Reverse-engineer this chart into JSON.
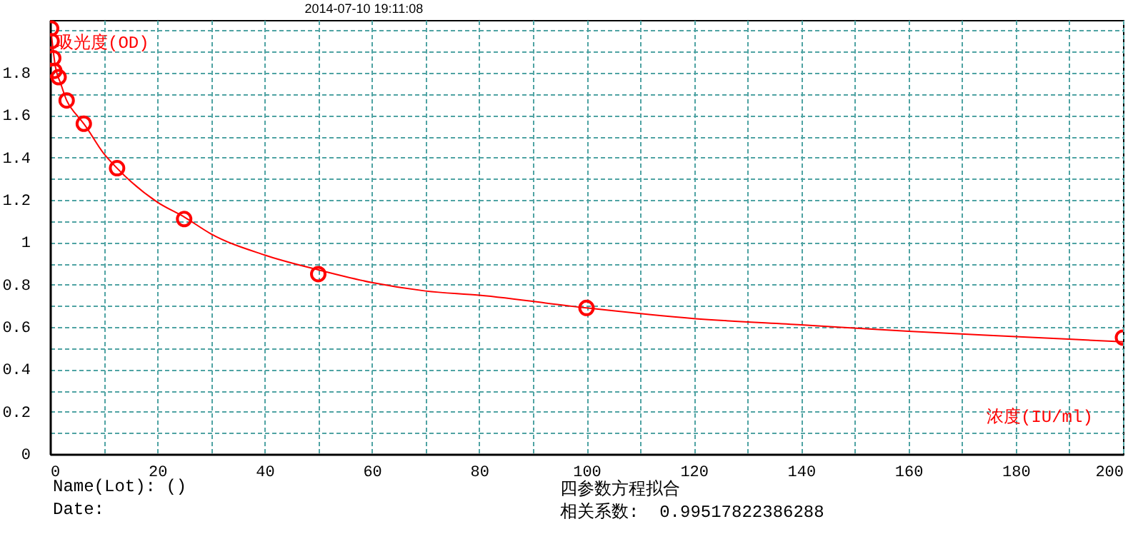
{
  "chart_data": {
    "type": "scatter",
    "title": "2014-07-10 19:11:08",
    "xlabel": "浓度(IU/ml)",
    "ylabel": "吸光度(OD)",
    "annotations": [
      "Name(Lot): ()",
      "Date:",
      "四参数方程拟合",
      "相关系数:  0.99517822386288"
    ],
    "series": [
      {
        "type": "scatter",
        "color": "#ff0000",
        "marker": "circle",
        "x": [
          0.2,
          0.3,
          0.6,
          0.8,
          1.6,
          3.1,
          6.3,
          12.5,
          25,
          50,
          100,
          200
        ],
        "values": [
          2.01,
          1.95,
          1.87,
          1.81,
          1.78,
          1.67,
          1.56,
          1.35,
          1.11,
          0.85,
          0.69,
          0.55
        ]
      },
      {
        "type": "line",
        "color": "#ff0000",
        "marker": "none",
        "x": [
          0.3,
          1,
          2,
          3.1,
          5,
          6.3,
          10,
          12.5,
          20,
          25,
          30,
          40,
          50,
          60,
          70,
          80,
          100,
          120,
          140,
          160,
          180,
          200
        ],
        "values": [
          1.97,
          1.83,
          1.75,
          1.67,
          1.6,
          1.56,
          1.42,
          1.35,
          1.19,
          1.12,
          1.04,
          0.94,
          0.87,
          0.81,
          0.77,
          0.75,
          0.69,
          0.64,
          0.61,
          0.58,
          0.555,
          0.53
        ]
      }
    ],
    "xlim": [
      0,
      200
    ],
    "ylim": [
      0,
      2.05
    ],
    "xticks": [
      0,
      {
        "value": 10,
        "label": null
      },
      20,
      {
        "value": 30,
        "label": null
      },
      40,
      {
        "value": 50,
        "label": null
      },
      60,
      {
        "value": 70,
        "label": null
      },
      80,
      {
        "value": 90,
        "label": null
      },
      100,
      {
        "value": 110,
        "label": null
      },
      120,
      {
        "value": 130,
        "label": null
      },
      140,
      {
        "value": 150,
        "label": null
      },
      160,
      {
        "value": 170,
        "label": null
      },
      180,
      {
        "value": 190,
        "label": null
      },
      200
    ],
    "yticks": [
      0,
      {
        "value": 0.1,
        "label": null
      },
      0.2,
      {
        "value": 0.3,
        "label": null
      },
      0.4,
      {
        "value": 0.5,
        "label": null
      },
      0.6,
      {
        "value": 0.7,
        "label": null
      },
      0.8,
      {
        "value": 0.9,
        "label": null
      },
      1,
      {
        "value": 1.1,
        "label": null
      },
      1.2,
      {
        "value": 1.3,
        "label": null
      },
      1.4,
      {
        "value": 1.5,
        "label": null
      },
      1.6,
      {
        "value": 1.7,
        "label": null
      },
      1.8,
      {
        "value": 1.9,
        "label": null
      },
      {
        "value": 2,
        "label": null
      }
    ],
    "grid": true
  }
}
